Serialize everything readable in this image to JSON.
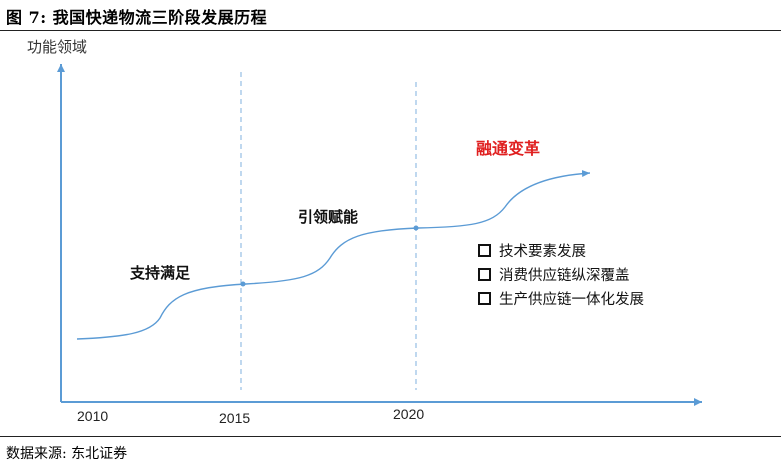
{
  "figure": {
    "title": "图 7: 我国快递物流三阶段发展历程",
    "source": "数据来源: 东北证券"
  },
  "axes": {
    "ylabel": "功能领域",
    "ticks": [
      "2010",
      "2015",
      "2020"
    ]
  },
  "stages": [
    {
      "label": "支持满足",
      "color": "#111111"
    },
    {
      "label": "引领赋能",
      "color": "#111111"
    },
    {
      "label": "融通变革",
      "color": "#e02020"
    }
  ],
  "legend": {
    "items": [
      "技术要素发展",
      "消费供应链纵深覆盖",
      "生产供应链一体化发展"
    ]
  },
  "colors": {
    "axis": "#5b9bd5",
    "curve": "#5b9bd5",
    "dashed": "#9dc3e6"
  }
}
